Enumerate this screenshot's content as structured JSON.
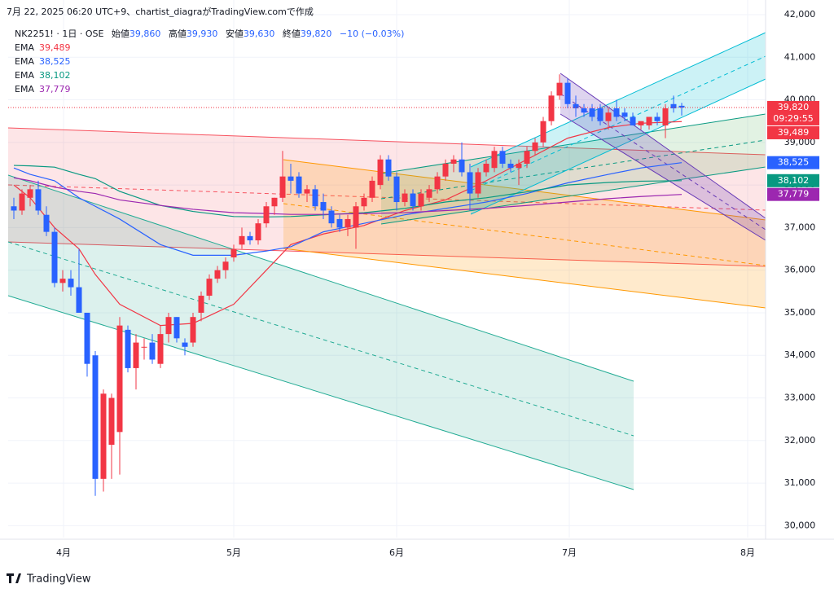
{
  "header": {
    "caption": "7月 22, 2025 06:20 UTC+9、chartist_diagraがTradingView.comで作成",
    "symbol": "NK2251! · 1日 · OSE",
    "open_label": "始値",
    "open": "39,860",
    "high_label": "高値",
    "high": "39,930",
    "low_label": "安値",
    "low": "39,630",
    "close_label": "終値",
    "close": "39,820",
    "change": "−10 (−0.03%)"
  },
  "footer": {
    "brand": "TradingView"
  },
  "chart_data": {
    "type": "candlestick",
    "up_color": "#f23645",
    "down_color": "#2962ff",
    "open": [
      37500,
      37400,
      37700,
      37900,
      37300,
      36900,
      35700,
      35800,
      35600,
      35000,
      34000,
      31100,
      31900,
      32200,
      34600,
      33700,
      34200,
      34300,
      33800,
      34500,
      34900,
      34300,
      34300,
      35000,
      35400,
      35800,
      36000,
      36300,
      36600,
      36800,
      36700,
      37100,
      37500,
      37700,
      38200,
      38200,
      37800,
      37900,
      37600,
      37400,
      37200,
      37000,
      37000,
      37500,
      37700,
      38000,
      38600,
      38200,
      37600,
      37800,
      37500,
      37700,
      37900,
      38200,
      38500,
      38600,
      38300,
      37800,
      38300,
      38400,
      38800,
      38500,
      38400,
      38500,
      38800,
      39000,
      39500,
      40100,
      40400,
      39900,
      39800,
      39800,
      39800,
      39500,
      39800,
      39700,
      39600,
      39400,
      39400,
      39600,
      39400,
      39900,
      39860
    ],
    "high": [
      37700,
      37900,
      38000,
      38100,
      37500,
      37000,
      36000,
      36000,
      36500,
      35000,
      34100,
      33200,
      33100,
      34900,
      34700,
      34500,
      34400,
      34500,
      34700,
      35000,
      34900,
      34400,
      35000,
      35500,
      35900,
      36100,
      36300,
      36600,
      37000,
      36900,
      37200,
      37600,
      37700,
      38800,
      38500,
      38300,
      38000,
      38000,
      37800,
      37500,
      37300,
      37300,
      37600,
      37800,
      38200,
      38700,
      38700,
      38300,
      37900,
      37900,
      37900,
      38000,
      38300,
      38600,
      38700,
      39000,
      38500,
      38400,
      38600,
      38900,
      38900,
      38600,
      38600,
      38900,
      39100,
      39600,
      40200,
      40600,
      40500,
      40100,
      39900,
      39900,
      39900,
      39800,
      40000,
      39800,
      39700,
      39500,
      39600,
      39700,
      39900,
      40100,
      39930
    ],
    "low": [
      37200,
      37300,
      37500,
      37300,
      36800,
      35600,
      35500,
      35400,
      35000,
      33500,
      30700,
      30800,
      31100,
      31200,
      33600,
      33200,
      33900,
      33800,
      33700,
      34300,
      34300,
      34000,
      34200,
      34800,
      35300,
      35700,
      35800,
      36200,
      36500,
      36600,
      36600,
      37000,
      37300,
      37600,
      37800,
      37700,
      37600,
      37400,
      37200,
      37000,
      36900,
      36800,
      36500,
      37400,
      37600,
      37900,
      38100,
      37400,
      37500,
      37400,
      37400,
      37600,
      37800,
      38100,
      38300,
      38200,
      37400,
      37700,
      38200,
      38300,
      38400,
      38300,
      38000,
      38400,
      38700,
      38900,
      39400,
      40000,
      39800,
      39600,
      39600,
      39500,
      39400,
      39300,
      39500,
      39500,
      39400,
      39300,
      39300,
      39400,
      39100,
      39700,
      39630
    ],
    "close": [
      37400,
      37800,
      37900,
      37400,
      36900,
      35700,
      35800,
      35600,
      35000,
      33800,
      31100,
      33100,
      33000,
      34700,
      33700,
      34300,
      34200,
      33900,
      34500,
      34900,
      34400,
      34200,
      34900,
      35400,
      35800,
      36000,
      36200,
      36500,
      36800,
      36700,
      37100,
      37500,
      37700,
      38200,
      38100,
      37800,
      37900,
      37500,
      37400,
      37100,
      37000,
      37200,
      37500,
      37700,
      38100,
      38600,
      38200,
      37600,
      37800,
      37500,
      37800,
      37900,
      38200,
      38500,
      38600,
      38300,
      37800,
      38300,
      38500,
      38800,
      38500,
      38400,
      38500,
      38800,
      39000,
      39500,
      40100,
      40400,
      39900,
      39800,
      39700,
      39600,
      39500,
      39700,
      39600,
      39600,
      39400,
      39500,
      39600,
      39500,
      39800,
      39800,
      39820
    ],
    "last_price_label": "39,820",
    "countdown": "09:29:55",
    "series": [
      {
        "name": "EMA",
        "label": "39,489",
        "color": "#f23645",
        "x": [
          0,
          2,
          5,
          8,
          10,
          13,
          18,
          22,
          27,
          31,
          34,
          38,
          43,
          48,
          53,
          58,
          63,
          68,
          73,
          77,
          82
        ],
        "values": [
          38000,
          37700,
          37000,
          36500,
          35900,
          35200,
          34700,
          34750,
          35200,
          36000,
          36600,
          36850,
          37050,
          37400,
          37650,
          38100,
          38600,
          39100,
          39350,
          39450,
          39489
        ]
      },
      {
        "name": "EMA",
        "label": "38,525",
        "color": "#2962ff",
        "x": [
          0,
          2,
          5,
          8,
          10,
          13,
          18,
          22,
          27,
          31,
          34,
          38,
          43,
          48,
          53,
          58,
          63,
          68,
          73,
          77,
          82
        ],
        "values": [
          38400,
          38250,
          38100,
          37700,
          37500,
          37200,
          36600,
          36350,
          36350,
          36450,
          36550,
          36900,
          37100,
          37300,
          37450,
          37600,
          37800,
          38050,
          38250,
          38400,
          38525
        ]
      },
      {
        "name": "EMA",
        "label": "38,102",
        "color": "#089981",
        "x": [
          0,
          2,
          5,
          8,
          10,
          13,
          18,
          22,
          27,
          31,
          34,
          38,
          43,
          48,
          53,
          58,
          63,
          68,
          73,
          77,
          82
        ],
        "values": [
          38460,
          38450,
          38420,
          38250,
          38150,
          37850,
          37520,
          37380,
          37260,
          37250,
          37260,
          37300,
          37350,
          37450,
          37600,
          37700,
          37840,
          38000,
          38060,
          38090,
          38102
        ]
      },
      {
        "name": "EMA",
        "label": "37,779",
        "color": "#9c27b0",
        "x": [
          0,
          2,
          5,
          8,
          10,
          13,
          18,
          22,
          27,
          31,
          34,
          38,
          43,
          48,
          53,
          58,
          63,
          68,
          73,
          77,
          82
        ],
        "values": [
          38170,
          38100,
          37950,
          37850,
          37800,
          37650,
          37520,
          37430,
          37350,
          37330,
          37310,
          37310,
          37330,
          37350,
          37400,
          37450,
          37520,
          37600,
          37680,
          37730,
          37779
        ]
      }
    ],
    "xlim": [
      -0.7,
      92.3
    ],
    "xticks": [
      {
        "value": 6.1,
        "label": "4月"
      },
      {
        "value": 27,
        "label": "5月"
      },
      {
        "value": 47,
        "label": "6月"
      },
      {
        "value": 68.2,
        "label": "7月"
      },
      {
        "value": 90.1,
        "label": "8月"
      }
    ],
    "ylim": [
      29720,
      42000
    ],
    "yticks": [
      {
        "value": 42000,
        "label": "42,000"
      },
      {
        "value": 41000,
        "label": "41,000"
      },
      {
        "value": 40000,
        "label": "40,000"
      },
      {
        "value": 39000,
        "label": "39,000"
      },
      {
        "value": 38000,
        "label": "38,000"
      },
      {
        "value": 37000,
        "label": "37,000"
      },
      {
        "value": 36000,
        "label": "36,000"
      },
      {
        "value": 35000,
        "label": "35,000"
      },
      {
        "value": 34000,
        "label": "34,000"
      },
      {
        "value": 33000,
        "label": "33,000"
      },
      {
        "value": 32000,
        "label": "32,000"
      },
      {
        "value": 31000,
        "label": "31,000"
      },
      {
        "value": 30000,
        "label": "30,000"
      }
    ],
    "grid": true
  }
}
